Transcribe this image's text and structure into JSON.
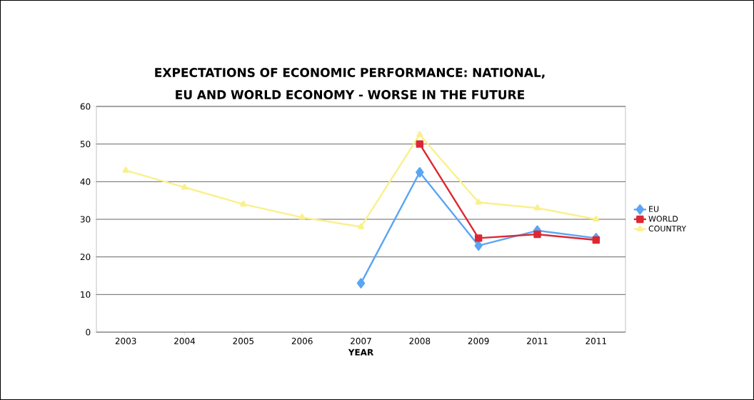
{
  "chart_data": {
    "type": "line",
    "title": "EXPECTATIONS OF ECONOMIC PERFORMANCE: NATIONAL, EU AND WORLD ECONOMY - WORSE IN THE FUTURE",
    "xlabel": "YEAR",
    "categories": [
      "2003",
      "2004",
      "2005",
      "2006",
      "2007",
      "2008",
      "2009",
      "2011",
      "2011"
    ],
    "series": [
      {
        "name": "EU",
        "color": "#5aa5f5",
        "marker": "diamond",
        "values": [
          null,
          null,
          null,
          null,
          13,
          42.5,
          23,
          27,
          25
        ]
      },
      {
        "name": "WORLD",
        "color": "#dc2832",
        "marker": "square",
        "values": [
          null,
          null,
          null,
          null,
          null,
          50,
          25,
          26,
          24.5
        ]
      },
      {
        "name": "COUNTRY",
        "color": "#faf08c",
        "marker": "triangle",
        "values": [
          43,
          38.5,
          34,
          30.5,
          28,
          52.5,
          34.5,
          33,
          30
        ]
      }
    ],
    "ylim": [
      0,
      60
    ],
    "yticks": [
      0,
      10,
      20,
      30,
      40,
      50,
      60
    ],
    "grid": "y",
    "legend": "right",
    "line_style": "solid"
  }
}
